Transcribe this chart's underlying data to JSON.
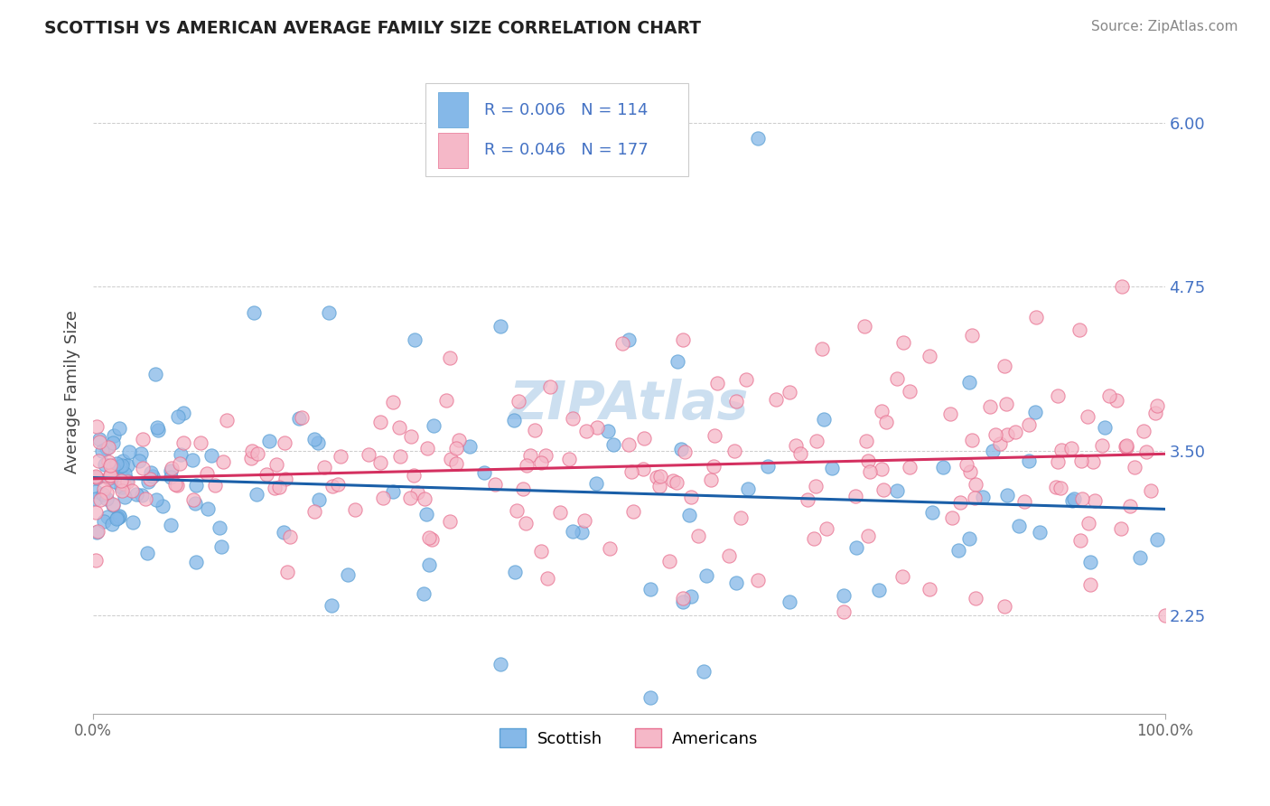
{
  "title": "SCOTTISH VS AMERICAN AVERAGE FAMILY SIZE CORRELATION CHART",
  "source_text": "Source: ZipAtlas.com",
  "ylabel": "Average Family Size",
  "xlim": [
    0.0,
    1.0
  ],
  "ylim": [
    1.5,
    6.4
  ],
  "yticks": [
    2.25,
    3.5,
    4.75,
    6.0
  ],
  "ytick_labels": [
    "2.25",
    "3.50",
    "4.75",
    "6.00"
  ],
  "xtick_labels": [
    "0.0%",
    "100.0%"
  ],
  "scottish_color": "#85b8e8",
  "scottish_edge_color": "#5a9fd4",
  "american_color": "#f5b8c8",
  "american_edge_color": "#e87090",
  "scottish_line_color": "#1a5fa8",
  "american_line_color": "#d43060",
  "background_color": "#ffffff",
  "grid_color": "#cccccc",
  "tick_color": "#4472c4",
  "title_color": "#222222",
  "source_color": "#888888",
  "ylabel_color": "#444444",
  "watermark_color": "#ccdff0",
  "legend_edge_color": "#cccccc",
  "bottom_legend_label1": "Scottish",
  "bottom_legend_label2": "Americans",
  "legend_r1": "R = 0.006",
  "legend_n1": "N = 114",
  "legend_r2": "R = 0.046",
  "legend_n2": "N = 177"
}
